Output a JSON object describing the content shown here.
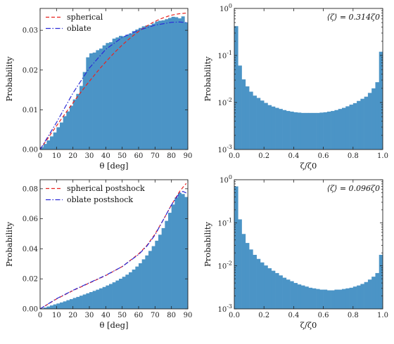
{
  "colors": {
    "bar": "#4b94c6",
    "spherical": "#e8231f",
    "oblate": "#2a2ad6"
  },
  "chart_data": [
    {
      "type": "bar",
      "panel": "top-left",
      "title": "",
      "xlabel": "θ [deg]",
      "ylabel": "Probability",
      "xlim": [
        0,
        90
      ],
      "ylim": [
        0,
        0.0355
      ],
      "xticks": [
        "0",
        "10",
        "20",
        "30",
        "40",
        "50",
        "60",
        "70",
        "80",
        "90"
      ],
      "yticks": [
        "0.00",
        "0.01",
        "0.02",
        "0.03"
      ],
      "bin_width": 2,
      "bar_values": [
        0.0006,
        0.0014,
        0.0023,
        0.0033,
        0.0043,
        0.0056,
        0.0068,
        0.0084,
        0.0096,
        0.011,
        0.0126,
        0.014,
        0.016,
        0.0195,
        0.0232,
        0.0242,
        0.0244,
        0.025,
        0.0254,
        0.0262,
        0.0268,
        0.027,
        0.0279,
        0.0282,
        0.0286,
        0.0285,
        0.0289,
        0.0292,
        0.0298,
        0.0302,
        0.0306,
        0.031,
        0.0312,
        0.0313,
        0.0317,
        0.0322,
        0.0324,
        0.0325,
        0.0328,
        0.0331,
        0.0334,
        0.0333,
        0.033,
        0.0335,
        0.032
      ],
      "series": [
        {
          "name": "spherical",
          "style": "dashed",
          "function": "sin",
          "amplitude": 0.0343
        },
        {
          "name": "oblate",
          "style": "dashdot",
          "points": [
            [
              0,
              0
            ],
            [
              10,
              0.0068
            ],
            [
              20,
              0.0142
            ],
            [
              30,
              0.0205
            ],
            [
              40,
              0.0252
            ],
            [
              50,
              0.0282
            ],
            [
              60,
              0.03
            ],
            [
              70,
              0.0313
            ],
            [
              80,
              0.032
            ],
            [
              85,
              0.0321
            ],
            [
              90,
              0.0319
            ]
          ]
        }
      ],
      "legend": "top-left"
    },
    {
      "type": "bar",
      "panel": "top-right",
      "scale": "log",
      "xlabel": "ζ/ζ0",
      "ylabel": "Probability",
      "xlim": [
        0,
        1
      ],
      "ylim": [
        0.001,
        1
      ],
      "xticks": [
        "0.0",
        "0.2",
        "0.4",
        "0.6",
        "0.8",
        "1.0"
      ],
      "yticks": [
        "10^0",
        "10^-1",
        "10^-2",
        "10^-3"
      ],
      "annotation": "⟨ζ⟩ = 0.314ζ0",
      "bin_width": 0.025,
      "bar_values": [
        0.42,
        0.061,
        0.031,
        0.022,
        0.017,
        0.014,
        0.0125,
        0.011,
        0.0098,
        0.0088,
        0.0082,
        0.0077,
        0.0073,
        0.0069,
        0.0066,
        0.0064,
        0.0062,
        0.0061,
        0.006,
        0.006,
        0.006,
        0.006,
        0.006,
        0.0061,
        0.0062,
        0.0064,
        0.0066,
        0.0069,
        0.0073,
        0.0077,
        0.0083,
        0.009,
        0.0097,
        0.0108,
        0.012,
        0.0133,
        0.016,
        0.02,
        0.027,
        0.12
      ]
    },
    {
      "type": "bar",
      "panel": "bottom-left",
      "xlabel": "θ [deg]",
      "ylabel": "Probability",
      "xlim": [
        0,
        90
      ],
      "ylim": [
        0,
        0.086
      ],
      "xticks": [
        "0",
        "10",
        "20",
        "30",
        "40",
        "50",
        "60",
        "70",
        "80",
        "90"
      ],
      "yticks": [
        "0.00",
        "0.02",
        "0.04",
        "0.06",
        "0.08"
      ],
      "bin_width": 2,
      "bar_values": [
        0.0003,
        0.0009,
        0.0016,
        0.0023,
        0.003,
        0.0036,
        0.0043,
        0.005,
        0.0058,
        0.0065,
        0.0073,
        0.008,
        0.0088,
        0.0096,
        0.0104,
        0.0112,
        0.012,
        0.0128,
        0.0137,
        0.0146,
        0.0156,
        0.0166,
        0.0177,
        0.0189,
        0.0201,
        0.0214,
        0.0228,
        0.0244,
        0.0262,
        0.0282,
        0.0304,
        0.033,
        0.0356,
        0.0386,
        0.0418,
        0.0454,
        0.0494,
        0.0538,
        0.0586,
        0.064,
        0.0695,
        0.0742,
        0.0772,
        0.0765,
        0.0745
      ],
      "series": [
        {
          "name": "spherical postshock",
          "style": "dashed",
          "points": [
            [
              0,
              0
            ],
            [
              10,
              0.0066
            ],
            [
              20,
              0.0122
            ],
            [
              30,
              0.0172
            ],
            [
              40,
              0.0222
            ],
            [
              50,
              0.0282
            ],
            [
              60,
              0.0366
            ],
            [
              65,
              0.0422
            ],
            [
              70,
              0.0498
            ],
            [
              75,
              0.0592
            ],
            [
              80,
              0.0692
            ],
            [
              85,
              0.0782
            ],
            [
              88,
              0.0822
            ],
            [
              89,
              0.0835
            ]
          ]
        },
        {
          "name": "oblate postshock",
          "style": "dashdot",
          "points": [
            [
              0,
              0
            ],
            [
              10,
              0.0068
            ],
            [
              20,
              0.0124
            ],
            [
              30,
              0.0174
            ],
            [
              40,
              0.0224
            ],
            [
              50,
              0.0282
            ],
            [
              60,
              0.0362
            ],
            [
              65,
              0.0418
            ],
            [
              70,
              0.0492
            ],
            [
              75,
              0.0592
            ],
            [
              80,
              0.0692
            ],
            [
              85,
              0.0772
            ],
            [
              87,
              0.0782
            ],
            [
              89,
              0.0772
            ]
          ]
        }
      ],
      "legend": "top-left"
    },
    {
      "type": "bar",
      "panel": "bottom-right",
      "scale": "log",
      "xlabel": "ζ/ζ0",
      "ylabel": "Probability",
      "xlim": [
        0,
        1
      ],
      "ylim": [
        0.001,
        1
      ],
      "xticks": [
        "0.0",
        "0.2",
        "0.4",
        "0.6",
        "0.8",
        "1.0"
      ],
      "yticks": [
        "10^0",
        "10^-1",
        "10^-2",
        "10^-3"
      ],
      "annotation": "⟨ζ⟩ = 0.096ζ0",
      "bin_width": 0.025,
      "bar_values": [
        0.7,
        0.12,
        0.055,
        0.034,
        0.024,
        0.018,
        0.0145,
        0.012,
        0.0102,
        0.0088,
        0.0077,
        0.0068,
        0.006,
        0.0053,
        0.0048,
        0.0044,
        0.004,
        0.0037,
        0.0035,
        0.0033,
        0.0031,
        0.003,
        0.0029,
        0.0028,
        0.0028,
        0.0027,
        0.0027,
        0.0028,
        0.0028,
        0.0029,
        0.003,
        0.0031,
        0.0033,
        0.0035,
        0.0038,
        0.0042,
        0.0048,
        0.0056,
        0.0068,
        0.018
      ]
    }
  ]
}
